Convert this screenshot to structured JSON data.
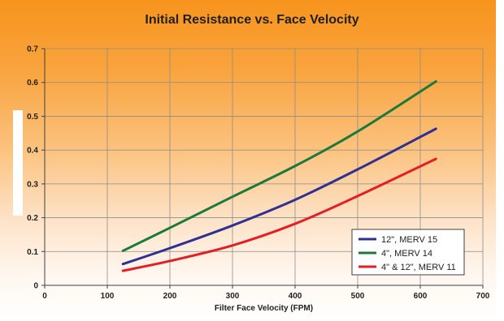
{
  "chart_data": {
    "type": "line",
    "title": "Initial Resistance vs. Face Velocity",
    "xlabel": "Filter Face Velocity (FPM)",
    "ylabel": "",
    "xlim": [
      0,
      700
    ],
    "ylim": [
      0,
      0.7
    ],
    "xticks": [
      0,
      100,
      200,
      300,
      400,
      500,
      600,
      700
    ],
    "yticks": [
      0,
      0.1,
      0.2,
      0.3,
      0.4,
      0.5,
      0.6,
      0.7
    ],
    "ytick_labels": [
      "0",
      "0.1",
      "0.2",
      "0.3",
      "0.4",
      "0.5",
      "0.6",
      "0.7"
    ],
    "grid": true,
    "legend_position": "bottom-right",
    "series": [
      {
        "name": "12\", MERV 15",
        "color": "#2e3192",
        "x": [
          125,
          200,
          300,
          400,
          500,
          625
        ],
        "y": [
          0.063,
          0.11,
          0.177,
          0.253,
          0.343,
          0.463
        ]
      },
      {
        "name": "4\", MERV 14",
        "color": "#1b7a3a",
        "x": [
          125,
          200,
          300,
          400,
          500,
          625
        ],
        "y": [
          0.102,
          0.17,
          0.262,
          0.353,
          0.455,
          0.603
        ]
      },
      {
        "name": "4\" & 12\", MERV 11",
        "color": "#e21f26",
        "x": [
          125,
          200,
          300,
          400,
          500,
          625
        ],
        "y": [
          0.043,
          0.072,
          0.118,
          0.182,
          0.264,
          0.374
        ]
      }
    ]
  }
}
